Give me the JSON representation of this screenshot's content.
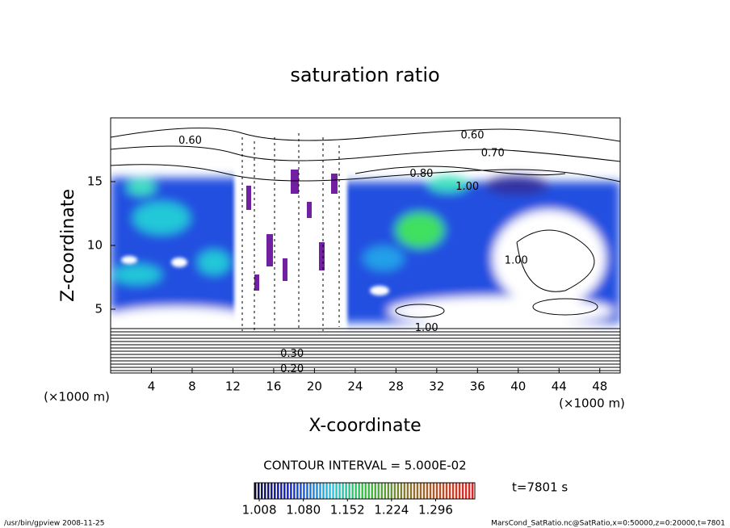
{
  "chart_data": {
    "type": "contour",
    "title": "saturation ratio",
    "x_label": "X-coordinate",
    "y_label": "Z-coordinate",
    "x_unit": "(×1000 m)",
    "y_unit": "(×1000 m)",
    "xlim": [
      0,
      50
    ],
    "ylim": [
      0,
      20
    ],
    "xticks": [
      4,
      8,
      12,
      16,
      20,
      24,
      28,
      32,
      36,
      40,
      44,
      48
    ],
    "yticks": [
      5,
      10,
      15
    ],
    "contour_interval": "CONTOUR INTERVAL = 5.000E-02",
    "time_label": "t=7801 s",
    "clim": [
      1.0,
      1.36
    ],
    "colorbar_ticks": [
      {
        "value": 1.008,
        "label": "1.008"
      },
      {
        "value": 1.08,
        "label": "1.080"
      },
      {
        "value": 1.152,
        "label": "1.152"
      },
      {
        "value": 1.224,
        "label": "1.224"
      },
      {
        "value": 1.296,
        "label": "1.296"
      }
    ],
    "contour_labels": [
      {
        "x": 7.8,
        "y": 18.2,
        "label": "0.60"
      },
      {
        "x": 35.5,
        "y": 18.6,
        "label": "0.60"
      },
      {
        "x": 37.5,
        "y": 17.2,
        "label": "0.70"
      },
      {
        "x": 30.5,
        "y": 15.6,
        "label": "0.80"
      },
      {
        "x": 35.0,
        "y": 14.6,
        "label": "1.00"
      },
      {
        "x": 39.8,
        "y": 8.8,
        "label": "1.00"
      },
      {
        "x": 31.0,
        "y": 3.5,
        "label": "1.00"
      },
      {
        "x": 17.8,
        "y": 1.5,
        "label": "0.30"
      },
      {
        "x": 17.8,
        "y": 0.3,
        "label": "0.20"
      }
    ],
    "footer_left": "/usr/bin/gpview  2008-11-25",
    "footer_right": "MarsCond_SatRatio.nc@SatRatio,x=0:50000,z=0:20000,t=7801"
  }
}
